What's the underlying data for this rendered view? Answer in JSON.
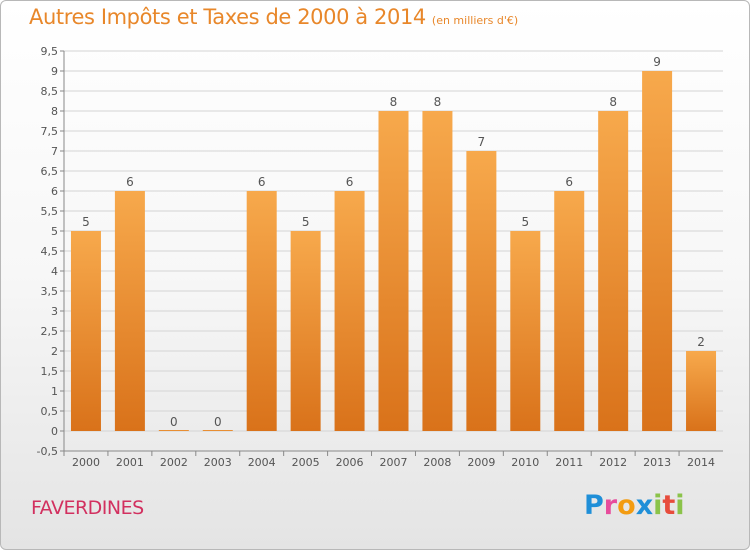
{
  "title": "Autres Impôts et Taxes de 2000 à 2014",
  "subtitle": "(en milliers d'€)",
  "commune": "FAVERDINES",
  "logo": {
    "text": "Proxiti",
    "letters": [
      {
        "ch": "P",
        "color": "#1f8fd8"
      },
      {
        "ch": "r",
        "color": "#e74c9c"
      },
      {
        "ch": "o",
        "color": "#f39c12"
      },
      {
        "ch": "x",
        "color": "#1f8fd8"
      },
      {
        "ch": "i",
        "color": "#8bc34a"
      },
      {
        "ch": "t",
        "color": "#e74c3c"
      },
      {
        "ch": "i",
        "color": "#8bc34a"
      }
    ]
  },
  "chart_data": {
    "type": "bar",
    "title": "Autres Impôts et Taxes de 2000 à 2014",
    "subtitle": "(en milliers d'€)",
    "categories": [
      "2000",
      "2001",
      "2002",
      "2003",
      "2004",
      "2005",
      "2006",
      "2007",
      "2008",
      "2009",
      "2010",
      "2011",
      "2012",
      "2013",
      "2014"
    ],
    "values": [
      5,
      6,
      0,
      0,
      6,
      5,
      6,
      8,
      8,
      7,
      5,
      6,
      8,
      9,
      2
    ],
    "ylim": [
      -0.5,
      9.5
    ],
    "yticks": [
      -0.5,
      0,
      0.5,
      1,
      1.5,
      2,
      2.5,
      3,
      3.5,
      4,
      4.5,
      5,
      5.5,
      6,
      6.5,
      7,
      7.5,
      8,
      8.5,
      9,
      9.5
    ],
    "ytick_labels": [
      "-0,5",
      "0",
      "0,5",
      "1",
      "1,5",
      "2",
      "2,5",
      "3",
      "3,5",
      "4",
      "4,5",
      "5",
      "5,5",
      "6",
      "6,5",
      "7",
      "7,5",
      "8",
      "8,5",
      "9",
      "9,5"
    ],
    "grid": true,
    "colors": {
      "bar_top": "#f7a94c",
      "bar_bottom": "#d9721a",
      "grid": "#d4d4d4",
      "axis": "#888888"
    }
  }
}
